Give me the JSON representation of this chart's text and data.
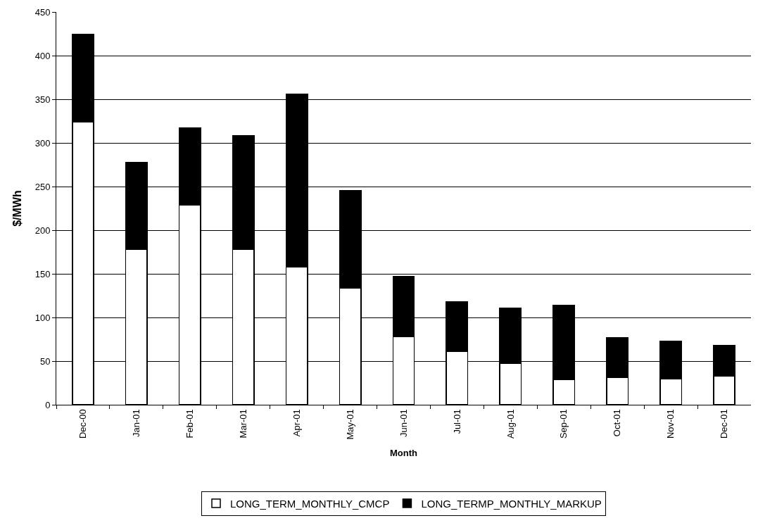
{
  "chart_data": {
    "type": "bar",
    "stacked": true,
    "xlabel": "Month",
    "ylabel": "$/MWh",
    "categories": [
      "Dec-00",
      "Jan-01",
      "Feb-01",
      "Mar-01",
      "Apr-01",
      "May-01",
      "Jun-01",
      "Jul-01",
      "Aug-01",
      "Sep-01",
      "Oct-01",
      "Nov-01",
      "Dec-01"
    ],
    "series": [
      {
        "name": "LONG_TERM_MONTHLY_CMCP",
        "color": "#ffffff",
        "values": [
          324,
          178,
          229,
          178,
          158,
          134,
          78,
          61,
          47,
          29,
          31,
          30,
          33
        ]
      },
      {
        "name": "LONG_TERMP_MONTHLY_MARKUP",
        "color": "#000000",
        "values": [
          100,
          100,
          88,
          130,
          198,
          111,
          69,
          57,
          64,
          85,
          46,
          43,
          35
        ]
      }
    ],
    "ylim": [
      0,
      450
    ],
    "yticks": [
      0,
      50,
      100,
      150,
      200,
      250,
      300,
      350,
      400,
      450
    ],
    "grid": "y",
    "legend": "bottom"
  }
}
